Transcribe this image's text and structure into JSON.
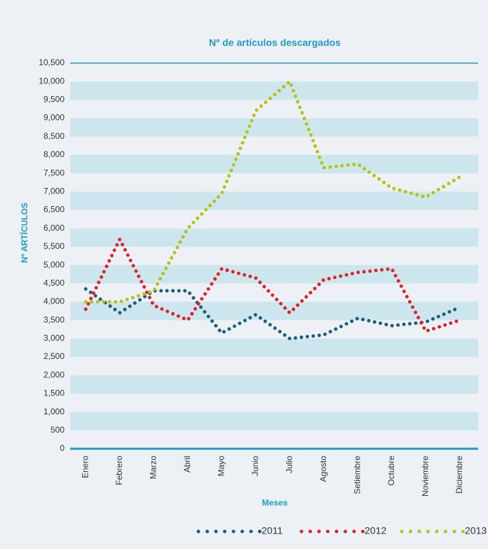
{
  "chart_data": {
    "type": "line",
    "title": "Nº de artículos descargados",
    "x_label": "Meses",
    "y_label": "Nº ARTÍCULOS",
    "categories": [
      "Enero",
      "Febrero",
      "Marzo",
      "Abril",
      "Mayo",
      "Junio",
      "Julio",
      "Agosto",
      "Setiembre",
      "Octubre",
      "Noviembre",
      "Diciembre"
    ],
    "series": [
      {
        "name": "2011",
        "color": "#1a5e7e",
        "values": [
          4350,
          3700,
          4300,
          4300,
          3150,
          3650,
          3000,
          3100,
          3550,
          3350,
          3450,
          3850
        ]
      },
      {
        "name": "2012",
        "color": "#d9232e",
        "values": [
          3800,
          5700,
          3900,
          3500,
          4900,
          4650,
          3700,
          4600,
          4800,
          4900,
          3200,
          3500
        ]
      },
      {
        "name": "2013",
        "color": "#b5c21a",
        "values": [
          4000,
          4000,
          4300,
          6000,
          6950,
          9200,
          10000,
          7650,
          7750,
          7100,
          6850,
          7400
        ]
      }
    ],
    "ylim": [
      0,
      10500
    ],
    "yticks": [
      0,
      500,
      {
        "value": 1000,
        "label": "1,000"
      },
      {
        "value": 1500,
        "label": "1,500"
      },
      {
        "value": 2000,
        "label": "2,000"
      },
      {
        "value": 2500,
        "label": "2,500"
      },
      {
        "value": 3000,
        "label": "3,000"
      },
      {
        "value": 3500,
        "label": "3,500"
      },
      {
        "value": 4000,
        "label": "4,000"
      },
      {
        "value": 4500,
        "label": "4,500"
      },
      {
        "value": 5000,
        "label": "5,000"
      },
      {
        "value": 5500,
        "label": "5,500"
      },
      {
        "value": 6000,
        "label": "6,000"
      },
      {
        "value": 6500,
        "label": "6,500"
      },
      {
        "value": 7000,
        "label": "7,000"
      },
      {
        "value": 7500,
        "label": "7,500"
      },
      {
        "value": 8000,
        "label": "8,000"
      },
      {
        "value": 8500,
        "label": "8,500"
      },
      {
        "value": 9000,
        "label": "9,000"
      },
      {
        "value": 9500,
        "label": "9,500"
      },
      {
        "value": 10000,
        "label": "10,000"
      },
      {
        "value": 10500,
        "label": "10,500"
      }
    ],
    "grid": true,
    "legend": "bottom"
  }
}
